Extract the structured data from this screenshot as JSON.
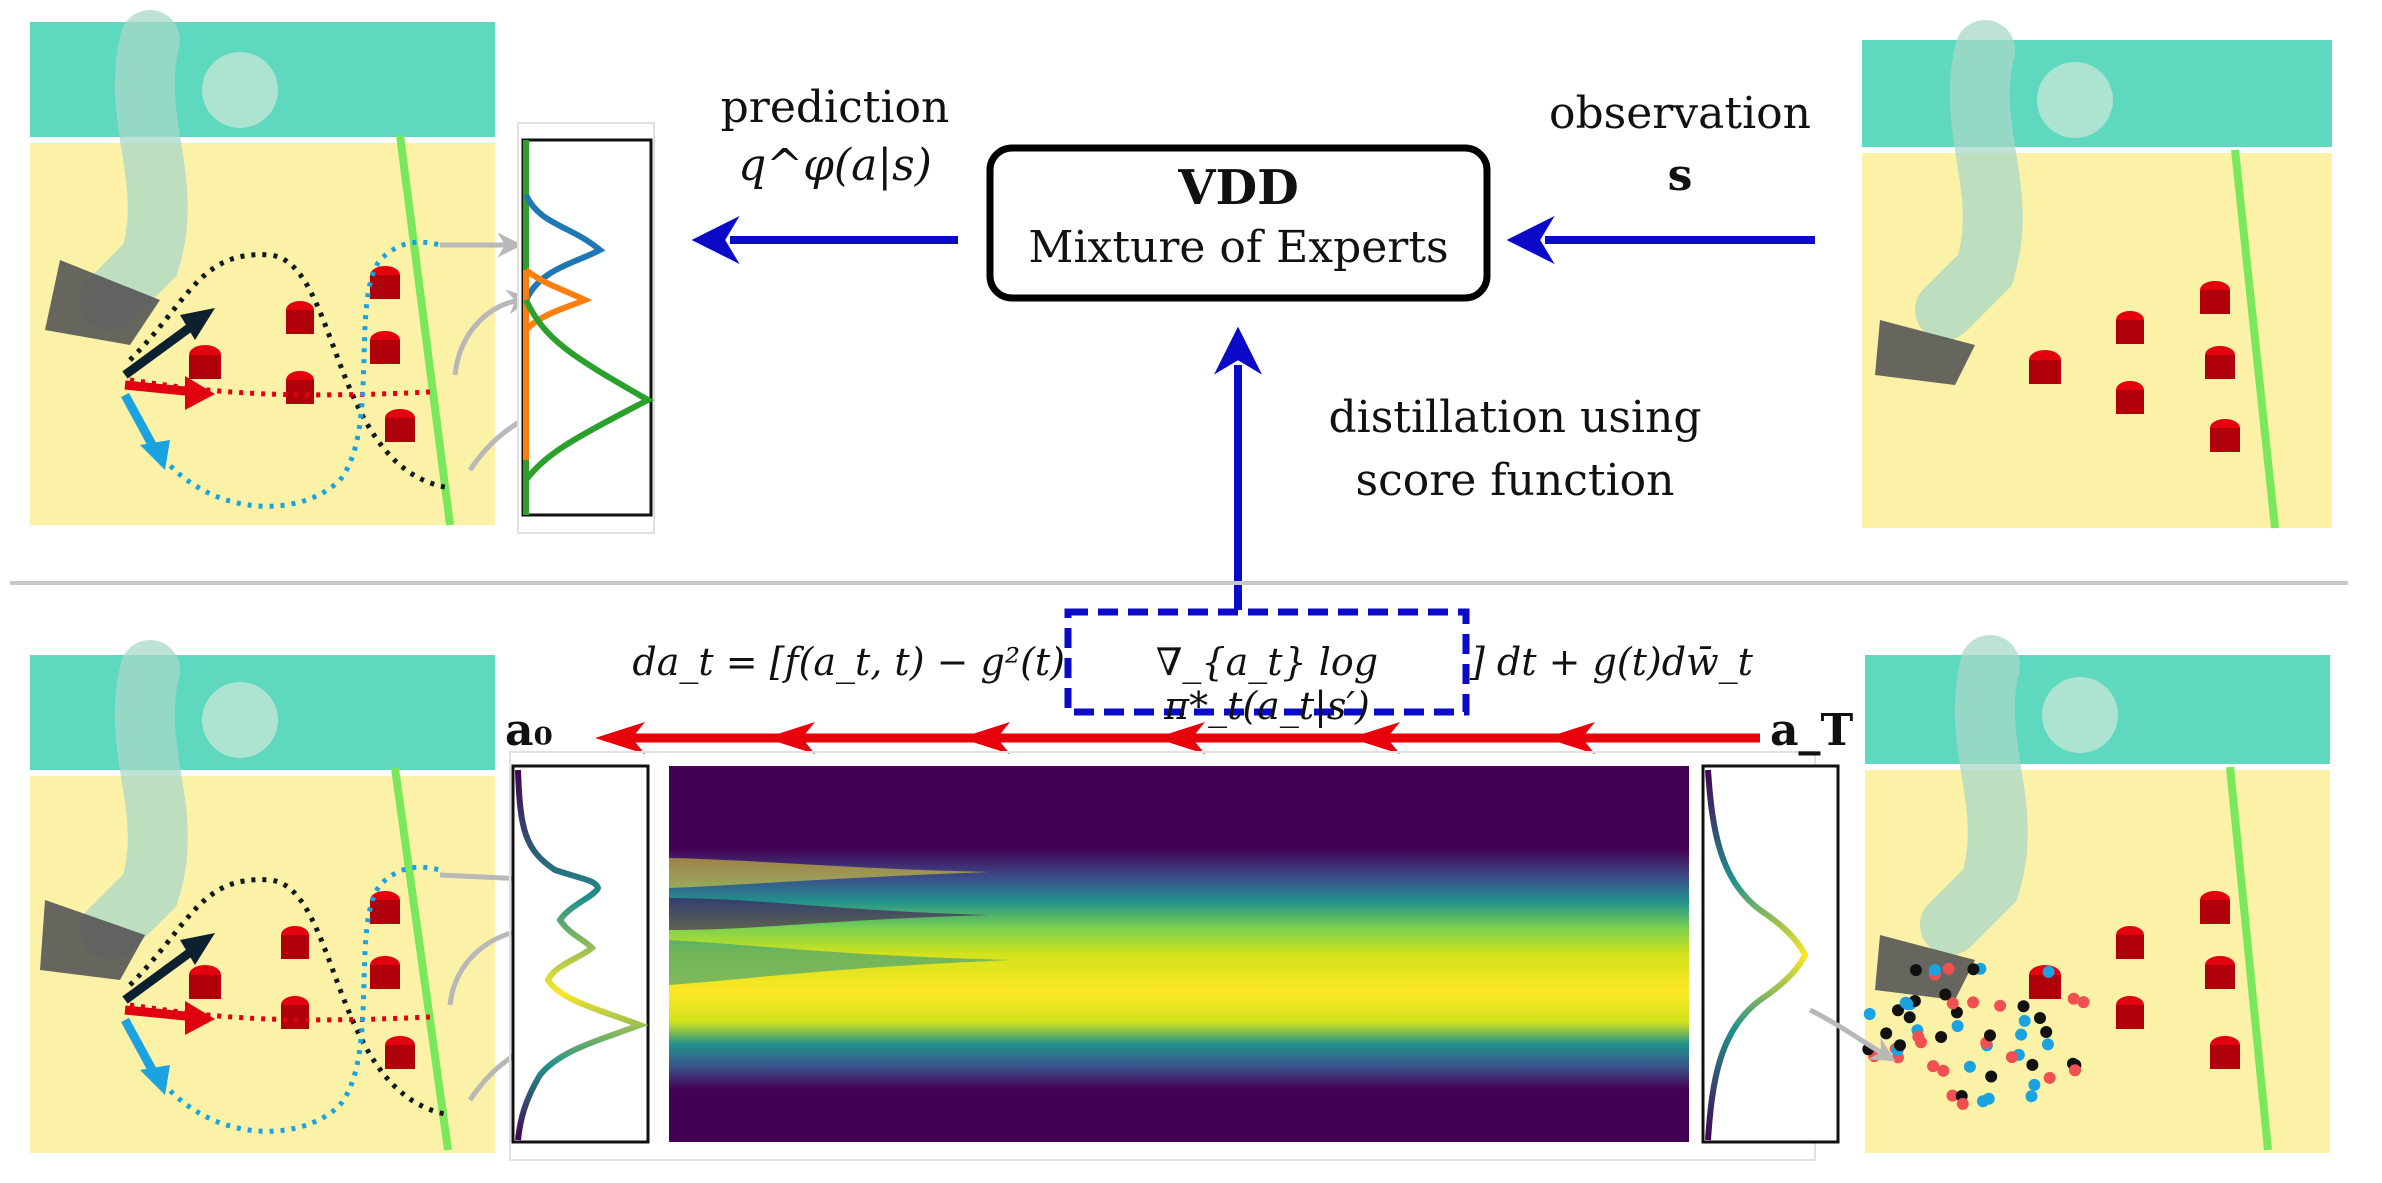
{
  "top": {
    "prediction": {
      "word": "prediction",
      "formula": "q^φ(a|s)"
    },
    "vdd_box": {
      "title": "VDD",
      "subtitle": "Mixture of Experts"
    },
    "observation": {
      "word": "observation",
      "symbol": "s"
    },
    "distillation": {
      "line1": "distillation using",
      "line2": "score function"
    }
  },
  "bottom": {
    "equation": {
      "left": "da_t = [f(a_t, t) − g²(t)",
      "boxed": "∇_{a_t} log π*_t(a_t|s′)",
      "right": "] dt + g(t)dw̄_t"
    },
    "a0_label": "a₀",
    "aT_label": "a_T"
  },
  "colors": {
    "blue_arrow": "#0a0ac8",
    "red_arrow": "#e8000b",
    "divider": "#c8c8c8",
    "floor": "#fbf2a8",
    "wall": "#5ed8bf",
    "peg": "#e3000f",
    "expert_blue": "#1f77b4",
    "expert_orange": "#ff7f0e",
    "expert_green": "#2ca02c",
    "viridis_low": "#440154",
    "viridis_mid": "#21918c",
    "viridis_high": "#fde725"
  }
}
